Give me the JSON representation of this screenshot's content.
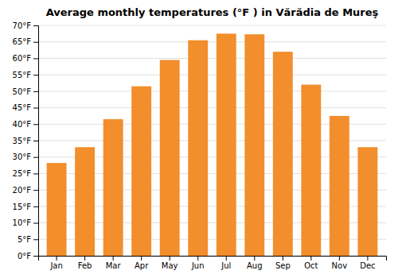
{
  "chart_data": {
    "type": "bar",
    "title": "Average monthly temperatures (°F ) in Vărădia de Mureş",
    "categories": [
      "Jan",
      "Feb",
      "Mar",
      "Apr",
      "May",
      "Jun",
      "Jul",
      "Aug",
      "Sep",
      "Oct",
      "Nov",
      "Dec"
    ],
    "values": [
      28.2,
      33.0,
      41.5,
      51.5,
      59.5,
      65.5,
      67.5,
      67.3,
      62.0,
      52.0,
      42.5,
      33.0
    ],
    "ylim": [
      0,
      70
    ],
    "yticks": [
      {
        "value": 0,
        "label": "0°F"
      },
      {
        "value": 5,
        "label": "5°F"
      },
      {
        "value": 10,
        "label": "10°F"
      },
      {
        "value": 15,
        "label": "15°F"
      },
      {
        "value": 20,
        "label": "20°F"
      },
      {
        "value": 25,
        "label": "25°F"
      },
      {
        "value": 30,
        "label": "30°F"
      },
      {
        "value": 35,
        "label": "35°F"
      },
      {
        "value": 40,
        "label": "40°F"
      },
      {
        "value": 45,
        "label": "45°F"
      },
      {
        "value": 50,
        "label": "50°F"
      },
      {
        "value": 55,
        "label": "55°F"
      },
      {
        "value": 60,
        "label": "60°F"
      },
      {
        "value": 65,
        "label": "65°F"
      },
      {
        "value": 70,
        "label": "70°F"
      }
    ],
    "grid": true
  }
}
